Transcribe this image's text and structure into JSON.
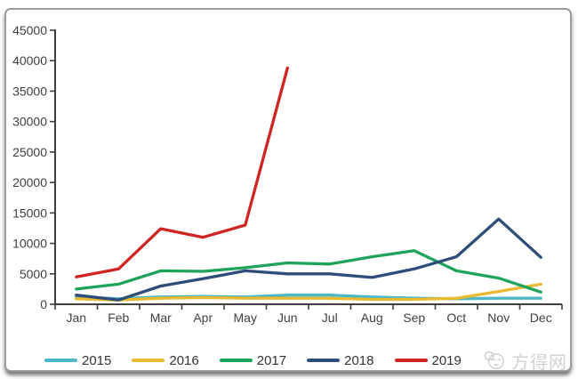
{
  "page": {
    "background": "#ffffff"
  },
  "card": {
    "border_color": "#9b9b9b"
  },
  "axis": {
    "line_color": "#3f3f3f",
    "label_color": "#404040",
    "tick_color": "#3f3f3f"
  },
  "watermark": {
    "text": "方得网",
    "color": "#d2d2d2",
    "logo_icon": "smiley-face-logo"
  },
  "chart_data": {
    "type": "line",
    "title": "",
    "xlabel": "",
    "ylabel": "",
    "grid": false,
    "legend_position": "bottom",
    "ylim": [
      0,
      45000
    ],
    "ytick_step": 5000,
    "y_tick_labels": [
      "0",
      "5000",
      "10000",
      "15000",
      "20000",
      "25000",
      "30000",
      "35000",
      "40000",
      "45000"
    ],
    "categories": [
      "Jan",
      "Feb",
      "Mar",
      "Apr",
      "May",
      "Jun",
      "Jul",
      "Aug",
      "Sep",
      "Oct",
      "Nov",
      "Dec"
    ],
    "series": [
      {
        "name": "2015",
        "color": "#4bb8c6",
        "values": [
          1200,
          900,
          1200,
          1300,
          1200,
          1500,
          1500,
          1200,
          1000,
          900,
          1000,
          1000
        ]
      },
      {
        "name": "2016",
        "color": "#e9b92f",
        "values": [
          900,
          700,
          1000,
          1100,
          1000,
          1000,
          1000,
          800,
          800,
          1000,
          2100,
          3300
        ]
      },
      {
        "name": "2017",
        "color": "#1ea45a",
        "values": [
          2500,
          3300,
          5500,
          5400,
          6000,
          6800,
          6600,
          7800,
          8800,
          5500,
          4300,
          2000
        ]
      },
      {
        "name": "2018",
        "color": "#2e4d79",
        "values": [
          1500,
          700,
          3000,
          4200,
          5500,
          5000,
          5000,
          4400,
          5800,
          7800,
          14000,
          7700
        ]
      },
      {
        "name": "2019",
        "color": "#d02423",
        "values": [
          4500,
          5800,
          12400,
          11000,
          13000,
          38800,
          null,
          null,
          null,
          null,
          null,
          null
        ]
      }
    ]
  }
}
